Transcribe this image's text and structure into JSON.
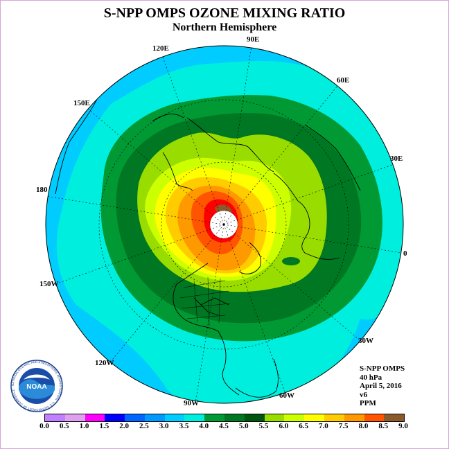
{
  "title": "S-NPP OMPS OZONE MIXING RATIO",
  "subtitle": "Northern Hemisphere",
  "longitude_labels": [
    "90E",
    "60E",
    "30E",
    "0",
    "30W",
    "60W",
    "90W",
    "120W",
    "150W",
    "180",
    "150E",
    "120E"
  ],
  "info": {
    "instrument": "S-NPP OMPS",
    "level": "40 hPa",
    "date": "April 5, 2016",
    "version": "v6",
    "units": "PPM"
  },
  "logo": {
    "text": "NOAA",
    "ring_text": "NATIONAL OCEANIC AND ATMOSPHERIC ADMINISTRATION · U.S. DEPARTMENT OF COMMERCE",
    "icon": "noaa-logo-icon"
  },
  "colorbar": {
    "ticks": [
      "0.0",
      "0.5",
      "1.0",
      "1.5",
      "2.0",
      "2.5",
      "3.0",
      "3.5",
      "4.0",
      "4.5",
      "5.0",
      "5.5",
      "6.0",
      "6.5",
      "7.0",
      "7.5",
      "8.0",
      "8.5",
      "9.0"
    ],
    "colors": [
      "#c080ff",
      "#e0a0f0",
      "#ff00ff",
      "#0000ff",
      "#0066ff",
      "#0099ff",
      "#00ccff",
      "#00eedd",
      "#009933",
      "#007722",
      "#005511",
      "#99dd00",
      "#ccff00",
      "#ffff00",
      "#ffcc00",
      "#ff9900",
      "#ff5500",
      "#ff0000",
      "#8b5a2b"
    ]
  },
  "map": {
    "projection": "north polar stereographic",
    "missing_data_cap": "no data near pole",
    "field_colors": {
      "cyan_3_0_3_5": "#00ccff",
      "aqua_3_5_4_0": "#00eedd",
      "green_4_0_4_5": "#009933",
      "dkgreen_4_5_5_0": "#005511",
      "lime_5_0_5_5": "#99dd00",
      "ylgreen_5_5_6_0": "#ccff00",
      "yellow_6_0_6_5": "#ffff00",
      "gold_6_5_7_0": "#ffcc00",
      "orange_7_0_7_5": "#ff9900",
      "redorange_7_5_8_0": "#ff5500",
      "red_8_0_8_5": "#ff0000"
    }
  }
}
